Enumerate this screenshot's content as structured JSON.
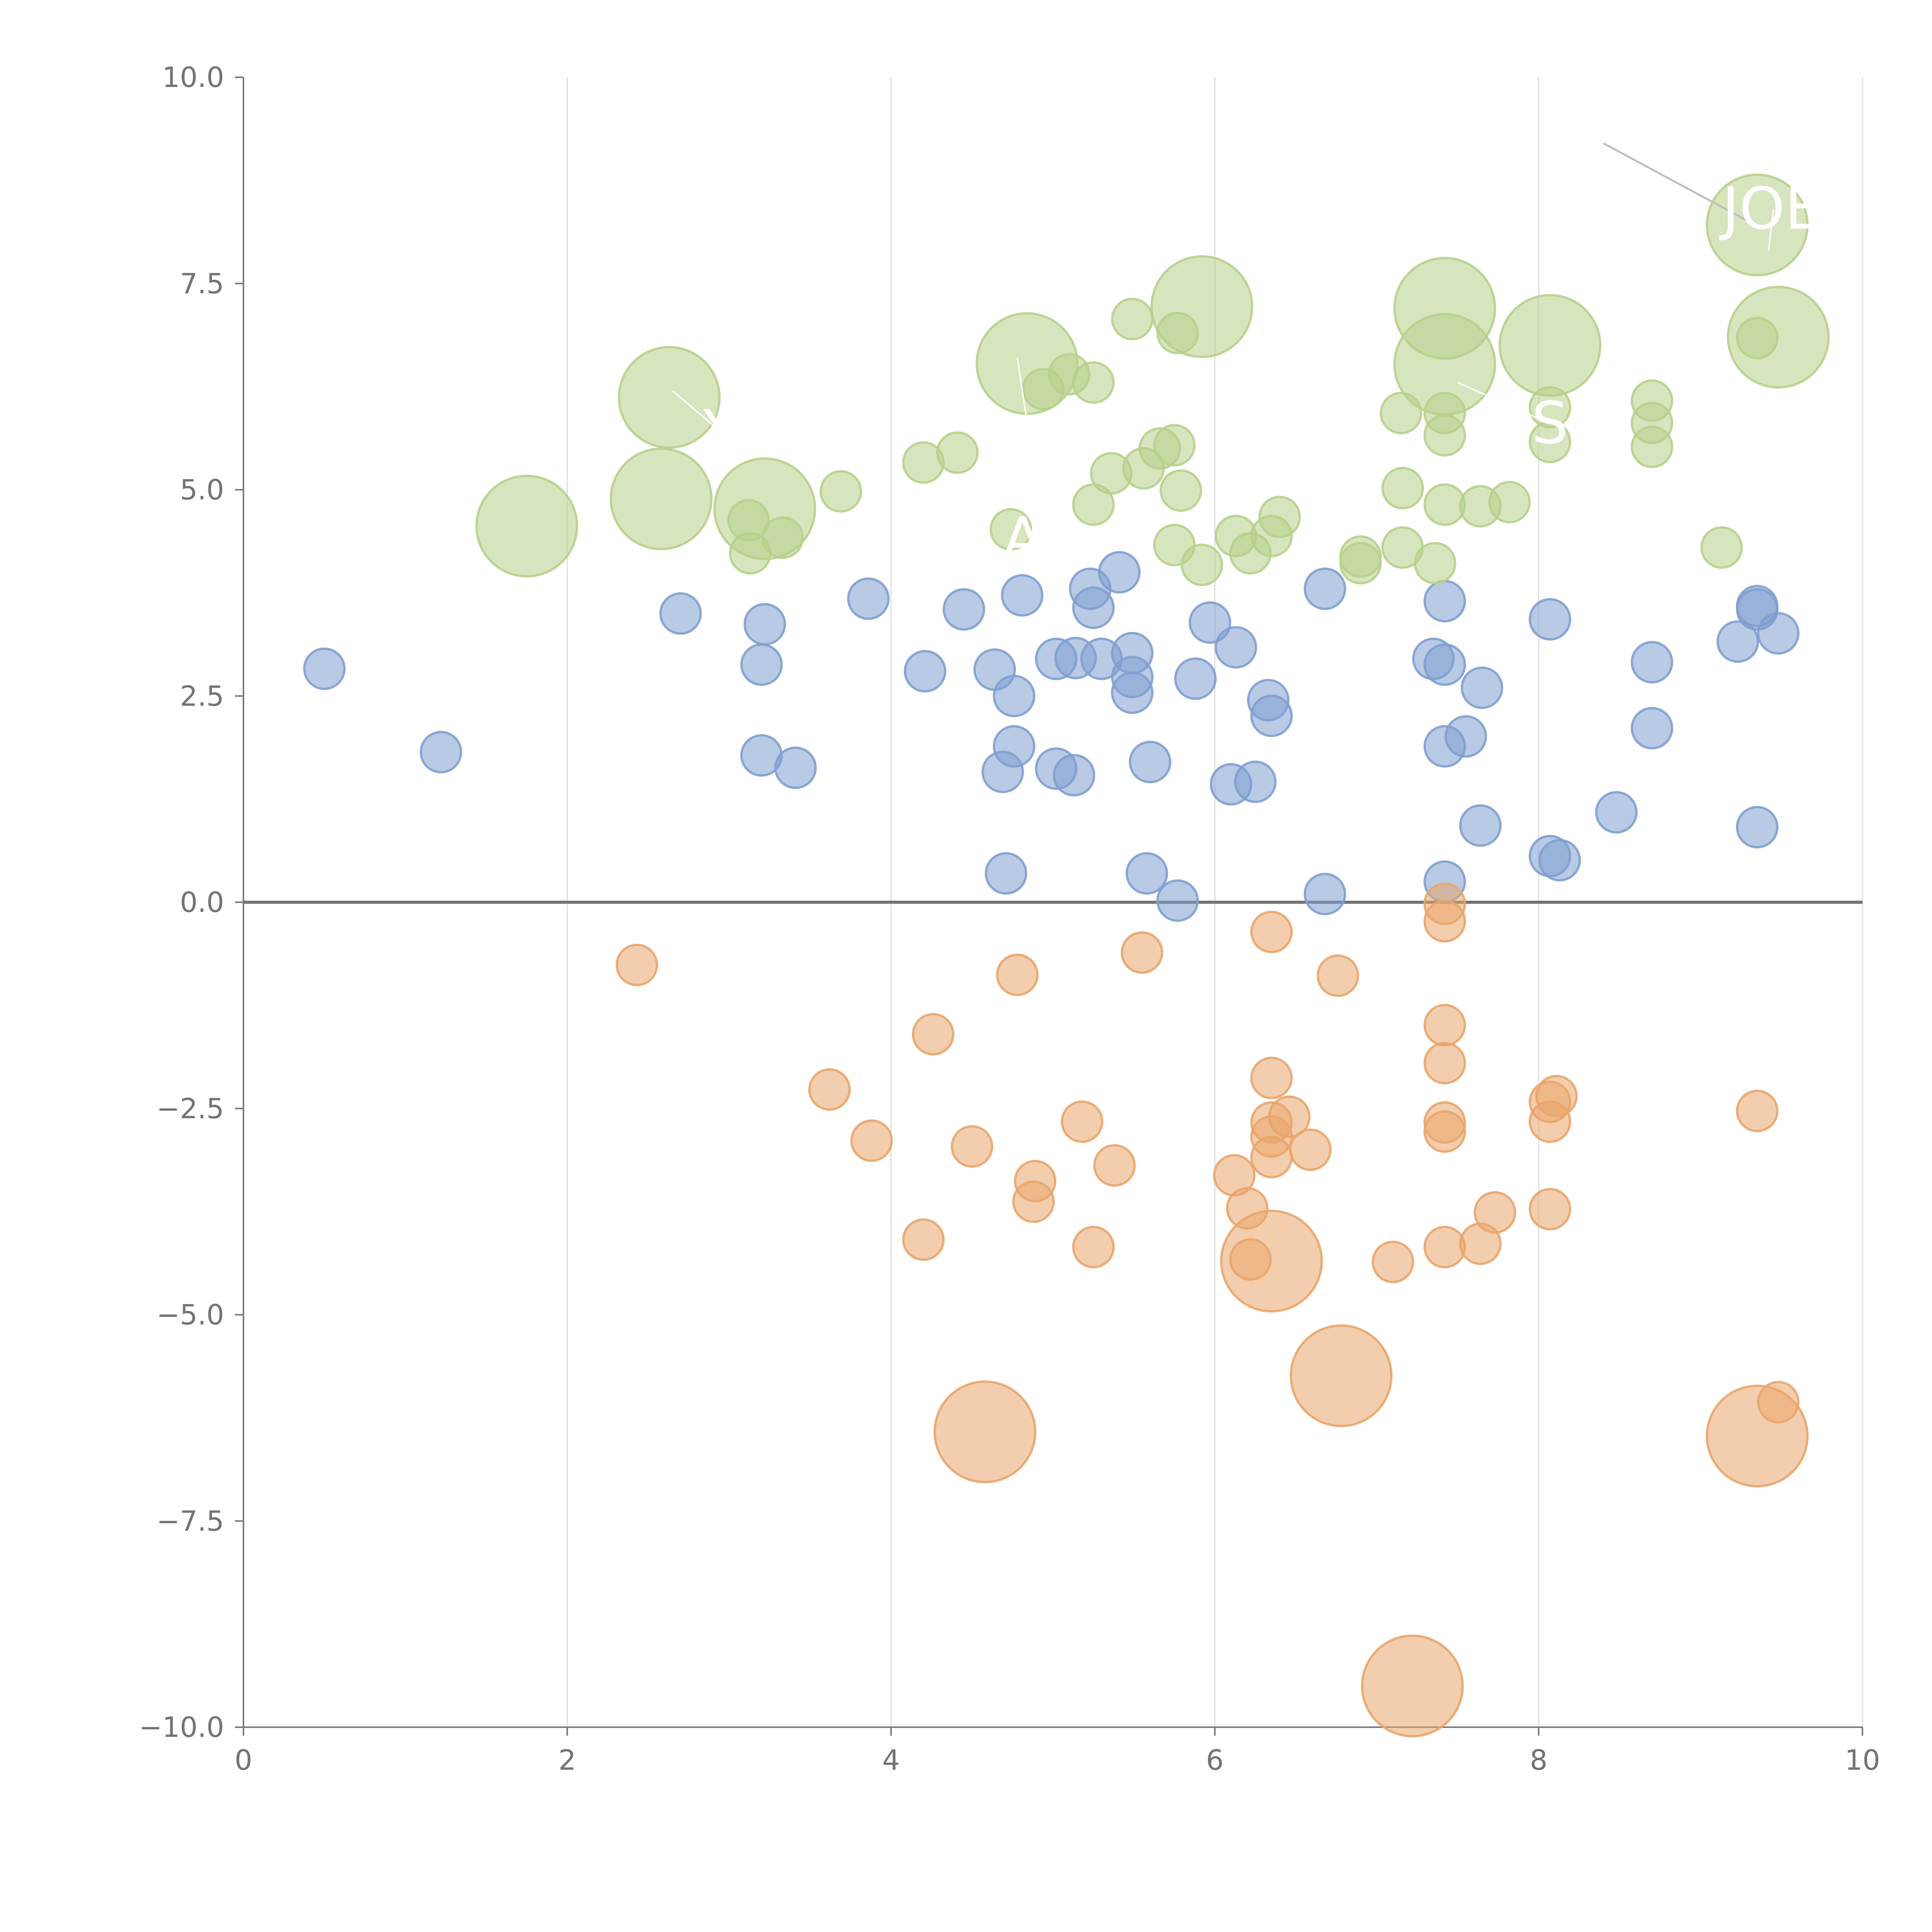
{
  "chart_data": {
    "type": "scatter",
    "title": "",
    "xlabel": "",
    "ylabel": "",
    "xlim": [
      0,
      10
    ],
    "ylim": [
      -10,
      10
    ],
    "x_ticks": [
      "0",
      "2",
      "4",
      "6",
      "8",
      "10"
    ],
    "y_ticks": [
      "−10.0",
      "−7.5",
      "−5.0",
      "−2.5",
      "0.0",
      "2.5",
      "5.0",
      "7.5",
      "10.0"
    ],
    "grid": "vertical",
    "reference_line_y": 0,
    "colors": {
      "blue": "#7f9fd0",
      "orange": "#e9a56c",
      "green": "#b7d08a",
      "grid": "#dddddd",
      "axis": "#7a7a7a"
    },
    "series": [
      {
        "name": "blue",
        "color": "#7f9fd0",
        "points": [
          [
            0.5,
            2.83,
            1
          ],
          [
            1.22,
            1.82,
            1
          ],
          [
            2.7,
            3.5,
            1
          ],
          [
            3.22,
            3.37,
            1
          ],
          [
            3.2,
            2.88,
            1
          ],
          [
            3.2,
            1.78,
            1
          ],
          [
            3.41,
            1.63,
            1
          ],
          [
            3.86,
            3.68,
            1
          ],
          [
            4.21,
            2.8,
            1
          ],
          [
            4.45,
            3.55,
            1
          ],
          [
            4.64,
            2.82,
            1
          ],
          [
            4.81,
            3.72,
            1
          ],
          [
            4.76,
            2.5,
            1
          ],
          [
            4.76,
            1.89,
            1
          ],
          [
            4.69,
            1.58,
            1
          ],
          [
            4.71,
            0.35,
            1
          ],
          [
            5.02,
            2.95,
            1
          ],
          [
            5.02,
            1.62,
            1
          ],
          [
            5.14,
            2.96,
            1
          ],
          [
            5.13,
            1.54,
            1
          ],
          [
            5.23,
            3.8,
            1
          ],
          [
            5.25,
            3.57,
            1
          ],
          [
            5.3,
            2.95,
            1
          ],
          [
            5.41,
            4.0,
            1
          ],
          [
            5.49,
            3.02,
            1
          ],
          [
            5.49,
            2.73,
            1
          ],
          [
            5.49,
            2.54,
            1
          ],
          [
            5.6,
            1.7,
            1
          ],
          [
            5.58,
            0.35,
            1
          ],
          [
            5.77,
            0.02,
            1
          ],
          [
            5.88,
            2.71,
            1
          ],
          [
            5.97,
            3.39,
            1
          ],
          [
            6.13,
            3.09,
            1
          ],
          [
            6.1,
            1.43,
            1
          ],
          [
            6.25,
            1.46,
            1
          ],
          [
            6.33,
            2.45,
            1
          ],
          [
            6.35,
            2.26,
            1
          ],
          [
            6.68,
            3.8,
            1
          ],
          [
            6.68,
            0.1,
            1
          ],
          [
            7.35,
            2.95,
            1
          ],
          [
            7.42,
            3.65,
            1
          ],
          [
            7.42,
            2.88,
            1
          ],
          [
            7.42,
            1.89,
            1
          ],
          [
            7.42,
            0.25,
            1
          ],
          [
            7.55,
            2.01,
            1
          ],
          [
            7.64,
            0.93,
            1
          ],
          [
            7.65,
            2.6,
            1
          ],
          [
            8.07,
            3.43,
            1
          ],
          [
            8.07,
            0.56,
            1
          ],
          [
            8.13,
            0.51,
            1
          ],
          [
            8.48,
            1.09,
            1
          ],
          [
            8.7,
            2.91,
            1
          ],
          [
            8.7,
            2.11,
            1
          ],
          [
            9.23,
            3.16,
            1
          ],
          [
            9.35,
            3.59,
            1
          ],
          [
            9.35,
            3.55,
            1
          ],
          [
            9.35,
            0.91,
            1
          ],
          [
            9.48,
            3.26,
            1
          ]
        ]
      },
      {
        "name": "orange",
        "color": "#e9a56c",
        "points": [
          [
            2.43,
            -0.76,
            1
          ],
          [
            3.62,
            -2.27,
            1
          ],
          [
            3.88,
            -2.89,
            1
          ],
          [
            4.2,
            -4.09,
            1
          ],
          [
            4.26,
            -1.6,
            1
          ],
          [
            4.5,
            -2.96,
            1
          ],
          [
            4.58,
            -6.42,
            2.5
          ],
          [
            4.78,
            -0.88,
            1
          ],
          [
            4.88,
            -3.63,
            1
          ],
          [
            4.89,
            -3.38,
            1
          ],
          [
            5.18,
            -2.66,
            1
          ],
          [
            5.25,
            -4.18,
            1
          ],
          [
            5.38,
            -3.19,
            1
          ],
          [
            5.55,
            -0.61,
            1
          ],
          [
            6.12,
            -3.31,
            1
          ],
          [
            6.2,
            -3.71,
            1
          ],
          [
            6.22,
            -4.33,
            1
          ],
          [
            6.35,
            -0.36,
            1
          ],
          [
            6.35,
            -2.13,
            1
          ],
          [
            6.35,
            -2.67,
            1
          ],
          [
            6.35,
            -2.84,
            1
          ],
          [
            6.35,
            -3.09,
            1
          ],
          [
            6.35,
            -4.35,
            2.5
          ],
          [
            6.46,
            -2.6,
            1
          ],
          [
            6.59,
            -3.0,
            1
          ],
          [
            6.76,
            -0.89,
            1
          ],
          [
            6.78,
            -5.74,
            2.5
          ],
          [
            7.1,
            -4.36,
            1
          ],
          [
            7.22,
            -9.5,
            2.5
          ],
          [
            7.42,
            -0.02,
            1
          ],
          [
            7.42,
            -0.23,
            1
          ],
          [
            7.42,
            -1.49,
            1
          ],
          [
            7.42,
            -1.95,
            1
          ],
          [
            7.42,
            -2.67,
            1
          ],
          [
            7.42,
            -2.78,
            1
          ],
          [
            7.42,
            -4.18,
            1
          ],
          [
            7.64,
            -4.14,
            1
          ],
          [
            7.73,
            -3.76,
            1
          ],
          [
            8.07,
            -2.42,
            1
          ],
          [
            8.07,
            -2.66,
            1
          ],
          [
            8.11,
            -2.35,
            1
          ],
          [
            8.07,
            -3.72,
            1
          ],
          [
            9.35,
            -2.53,
            1
          ],
          [
            9.35,
            -6.47,
            2.5
          ],
          [
            9.48,
            -6.06,
            1
          ]
        ]
      },
      {
        "name": "green",
        "color": "#b7d08a",
        "points": [
          [
            1.75,
            4.56,
            2.5
          ],
          [
            2.58,
            4.89,
            2.5
          ],
          [
            2.63,
            6.12,
            2.5
          ],
          [
            3.12,
            4.63,
            1
          ],
          [
            3.13,
            4.23,
            1
          ],
          [
            3.22,
            4.77,
            2.5
          ],
          [
            3.33,
            4.42,
            1
          ],
          [
            3.69,
            4.98,
            1
          ],
          [
            4.2,
            5.33,
            1
          ],
          [
            4.41,
            5.45,
            1
          ],
          [
            4.74,
            4.52,
            1
          ],
          [
            4.84,
            6.53,
            2.5
          ],
          [
            4.94,
            6.22,
            1
          ],
          [
            5.1,
            6.4,
            1
          ],
          [
            5.25,
            4.82,
            1
          ],
          [
            5.25,
            6.3,
            1
          ],
          [
            5.36,
            5.2,
            1
          ],
          [
            5.49,
            7.07,
            1
          ],
          [
            5.56,
            5.26,
            1
          ],
          [
            5.66,
            5.5,
            1
          ],
          [
            5.75,
            5.54,
            1
          ],
          [
            5.75,
            4.33,
            1
          ],
          [
            5.77,
            6.9,
            1
          ],
          [
            5.79,
            4.99,
            1
          ],
          [
            5.92,
            4.09,
            1
          ],
          [
            5.92,
            7.22,
            2.5
          ],
          [
            6.13,
            4.44,
            1
          ],
          [
            6.22,
            4.23,
            1
          ],
          [
            6.35,
            4.44,
            1
          ],
          [
            6.4,
            4.67,
            1
          ],
          [
            6.9,
            4.19,
            1
          ],
          [
            6.9,
            4.11,
            1
          ],
          [
            7.15,
            5.93,
            1
          ],
          [
            7.16,
            5.02,
            1
          ],
          [
            7.16,
            4.3,
            1
          ],
          [
            7.36,
            4.11,
            1
          ],
          [
            7.42,
            7.2,
            2.5
          ],
          [
            7.42,
            6.52,
            2.5
          ],
          [
            7.42,
            5.93,
            1
          ],
          [
            7.42,
            5.66,
            1
          ],
          [
            7.42,
            4.82,
            1
          ],
          [
            7.64,
            4.8,
            1
          ],
          [
            7.82,
            4.85,
            1
          ],
          [
            8.07,
            6.75,
            2.5
          ],
          [
            8.07,
            6.0,
            1
          ],
          [
            8.07,
            5.58,
            1
          ],
          [
            8.7,
            6.08,
            1
          ],
          [
            8.7,
            5.81,
            1
          ],
          [
            8.7,
            5.52,
            1
          ],
          [
            9.13,
            4.3,
            1
          ],
          [
            9.35,
            6.84,
            1
          ],
          [
            9.35,
            8.21,
            2.5
          ],
          [
            9.48,
            6.85,
            2.5
          ]
        ]
      }
    ],
    "annotations": [
      {
        "label": "Y",
        "x": 2.95,
        "y": 5.7,
        "tx": 2.65,
        "ty": 6.2
      },
      {
        "label": "AD",
        "x": 4.95,
        "y": 4.4,
        "tx": 4.78,
        "ty": 6.6
      },
      {
        "label": "S",
        "x": 8.07,
        "y": 5.8,
        "tx": 7.5,
        "ty": 6.3
      },
      {
        "label": "JOB",
        "x": 9.45,
        "y": 8.4,
        "tx": 9.42,
        "ty": 7.9
      }
    ],
    "leader_line": {
      "x1": 8.4,
      "y1": 9.2,
      "x2": 9.3,
      "y2": 8.25
    }
  }
}
